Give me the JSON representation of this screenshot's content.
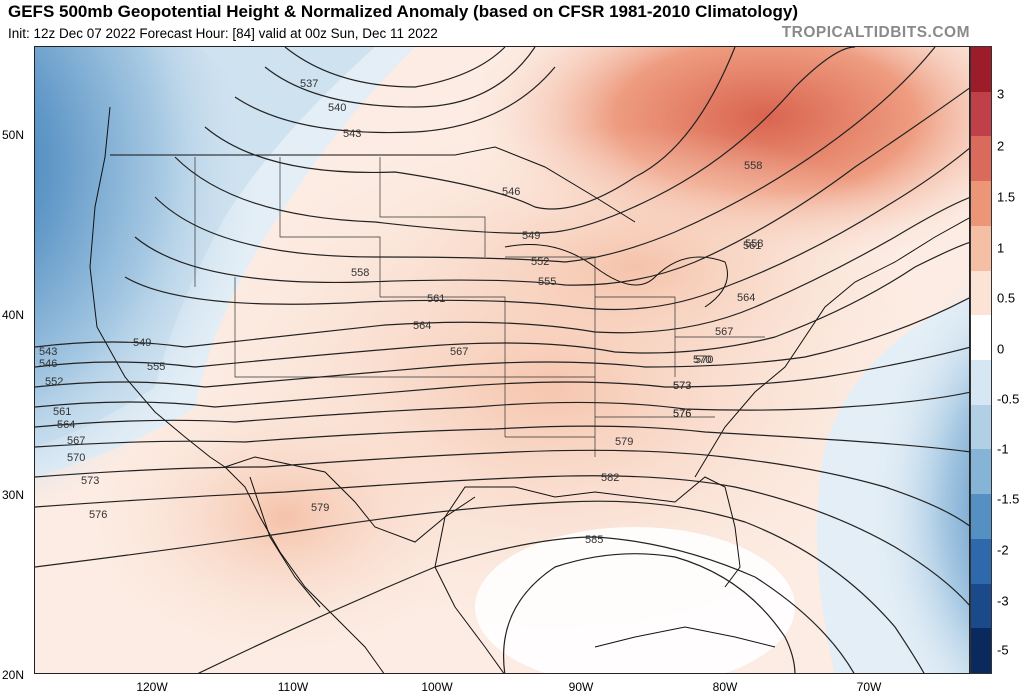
{
  "header": {
    "title": "GEFS 500mb Geopotential Height & Normalized Anomaly (based on CFSR 1981-2010 Climatology)",
    "subtitle": "Init: 12z Dec 07 2022   Forecast Hour: [84]   valid at 00z Sun, Dec 11 2022",
    "brand": "TROPICALTIDBITS.COM"
  },
  "map": {
    "lat_labels": [
      "50N",
      "40N",
      "30N",
      "20N"
    ],
    "lon_labels": [
      "120W",
      "110W",
      "100W",
      "90W",
      "80W",
      "70W"
    ],
    "contour_labels": [
      "537",
      "540",
      "543",
      "546",
      "549",
      "552",
      "555",
      "558",
      "561",
      "564",
      "567",
      "570",
      "573",
      "576",
      "579",
      "582",
      "585",
      "543",
      "546",
      "549",
      "552",
      "555",
      "558",
      "561",
      "564",
      "567",
      "570",
      "573",
      "576",
      "579",
      "558",
      "561",
      "564",
      "567",
      "570",
      "573",
      "576"
    ]
  },
  "colorbar": {
    "labels": [
      "3",
      "2",
      "1.5",
      "1",
      "0.5",
      "0",
      "-0.5",
      "-1",
      "-1.5",
      "-2",
      "-3",
      "-5"
    ],
    "colors": [
      "#9c1c2a",
      "#c0404a",
      "#d96a5c",
      "#ec9677",
      "#f5bfa6",
      "#fbe3d6",
      "#ffffff",
      "#d6e6f2",
      "#b1d0e6",
      "#86b4d6",
      "#5590c2",
      "#2e6aab",
      "#1b4a8a",
      "#0a2a5e"
    ]
  }
}
